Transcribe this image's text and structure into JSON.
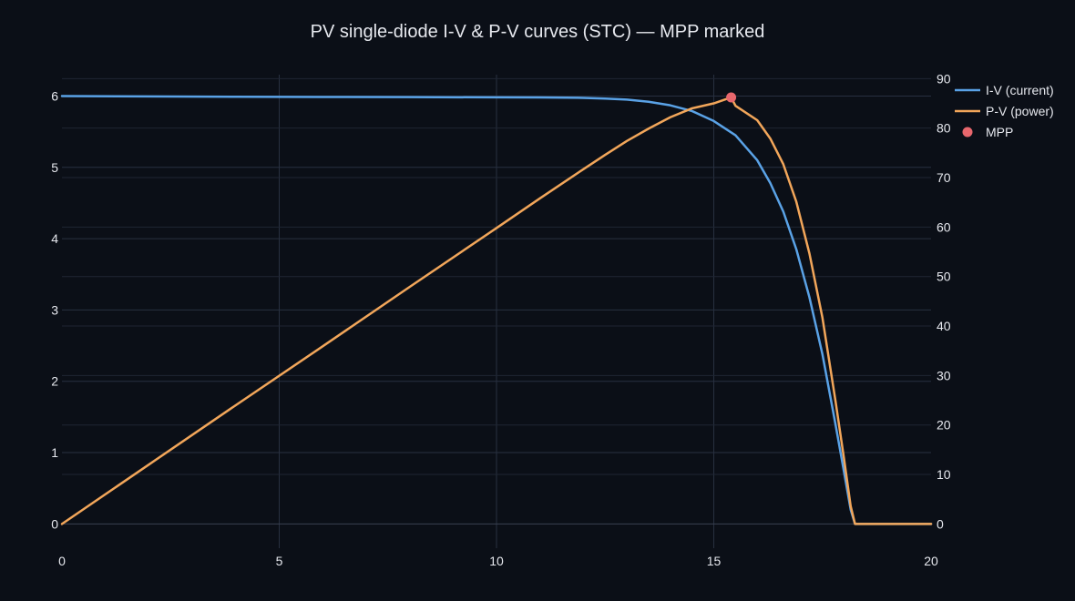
{
  "chart_data": {
    "type": "line",
    "title": "PV single-diode I-V & P-V curves (STC) — MPP marked",
    "xlabel": "",
    "ylabel": "",
    "y2label": "",
    "xlim": [
      0,
      20
    ],
    "ylim": [
      -0.34,
      6.3
    ],
    "y2lim": [
      -4.9,
      90.8
    ],
    "x_ticks": [
      0,
      5,
      10,
      15,
      20
    ],
    "y_ticks": [
      0,
      1,
      2,
      3,
      4,
      5,
      6
    ],
    "y2_ticks": [
      0,
      10,
      20,
      30,
      40,
      50,
      60,
      70,
      80,
      90
    ],
    "grid": true,
    "legend_position": "top-right",
    "series": [
      {
        "name": "I-V (current)",
        "axis": "y",
        "color": "#5aa2e6",
        "x": [
          0,
          2,
          4,
          6,
          8,
          10,
          11,
          12,
          12.5,
          13,
          13.5,
          14,
          14.5,
          15,
          15.5,
          16,
          16.3,
          16.6,
          16.9,
          17.2,
          17.5,
          17.8,
          18.0,
          18.15,
          18.25,
          18.3,
          19,
          20
        ],
        "y": [
          6.0,
          5.995,
          5.99,
          5.987,
          5.985,
          5.982,
          5.98,
          5.975,
          5.965,
          5.95,
          5.92,
          5.87,
          5.79,
          5.65,
          5.45,
          5.1,
          4.78,
          4.38,
          3.85,
          3.18,
          2.38,
          1.4,
          0.72,
          0.2,
          0.0,
          0.0,
          0.0,
          0.0
        ]
      },
      {
        "name": "P-V (power)",
        "axis": "y2",
        "color": "#f2a65a",
        "x": [
          0,
          2,
          4,
          6,
          8,
          10,
          11,
          12,
          12.5,
          13,
          13.5,
          14,
          14.5,
          15,
          15.4,
          15.5,
          16,
          16.3,
          16.6,
          16.9,
          17.2,
          17.5,
          17.8,
          18.0,
          18.15,
          18.25,
          18.3,
          19,
          20
        ],
        "y": [
          0,
          12.0,
          24.0,
          35.9,
          47.9,
          59.8,
          65.8,
          71.7,
          74.6,
          77.4,
          79.9,
          82.2,
          84.0,
          85.0,
          86.2,
          84.5,
          81.6,
          77.9,
          72.7,
          65.1,
          54.7,
          41.7,
          24.9,
          13.0,
          3.6,
          0.0,
          0.0,
          0.0,
          0.0
        ]
      },
      {
        "name": "MPP",
        "axis": "y2",
        "type": "scatter",
        "color": "#e8676d",
        "x": [
          15.4
        ],
        "y": [
          86.2
        ]
      }
    ]
  }
}
